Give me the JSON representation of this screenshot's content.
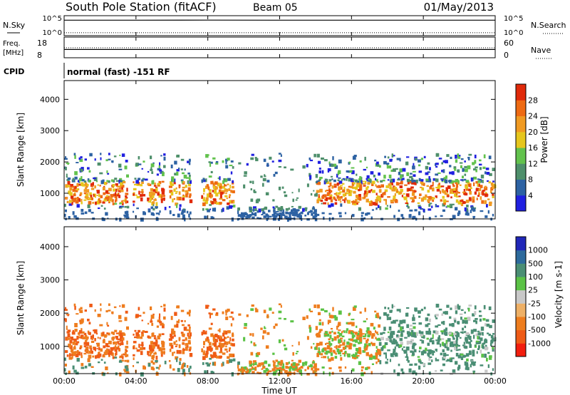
{
  "header": {
    "station": "South Pole Station (fitACF)",
    "beam": "Beam 05",
    "date": "01/May/2013"
  },
  "colors": {
    "power_scale": [
      "#2020e0",
      "#2d62a3",
      "#4e8f6b",
      "#62c24d",
      "#e6c61d",
      "#f09a22",
      "#ee6a13",
      "#e02a0a"
    ],
    "velocity_scale": [
      "#f21e0e",
      "#ef5b16",
      "#ee7d1e",
      "#eeb066",
      "#c8c8c8",
      "#5bc246",
      "#4a8e74",
      "#2d6a9c",
      "#2027b8"
    ]
  },
  "chart_data": [
    {
      "type": "line",
      "panel": "N.Sky / N.Search",
      "left_label": "N.Sky",
      "right_label": "N.Search",
      "left_ticks": [
        "10^5",
        "10^0"
      ],
      "right_ticks": [
        "10^5",
        "10^0"
      ],
      "series": [
        {
          "name": "N.Sky",
          "style": "solid",
          "x": [
            0,
            4,
            8,
            12,
            16,
            20,
            24
          ],
          "values": [
            30000,
            30000,
            32000,
            30000,
            30000,
            30000,
            30000
          ]
        },
        {
          "name": "N.Search",
          "style": "dotted",
          "x": [
            0,
            4,
            8,
            12,
            16,
            20,
            24
          ],
          "values": [
            3,
            3,
            3,
            3,
            3,
            3,
            3
          ]
        }
      ]
    },
    {
      "type": "line",
      "panel": "Freq. / Nave",
      "left_label": "Freq.",
      "left_unit": "[MHz]",
      "right_label": "Nave",
      "left_ticks": [
        18,
        8
      ],
      "right_ticks": [
        60,
        0
      ],
      "series": [
        {
          "name": "Freq.",
          "style": "solid",
          "x": [
            0,
            4,
            8,
            12,
            16,
            20,
            24
          ],
          "values": [
            12,
            12,
            12,
            12,
            12,
            12,
            12
          ]
        },
        {
          "name": "Nave",
          "style": "dotted",
          "x": [
            0,
            4,
            8,
            12,
            16,
            20,
            24
          ],
          "values": [
            30,
            30,
            30,
            30,
            30,
            30,
            30
          ]
        }
      ]
    },
    {
      "type": "text",
      "panel": "CPID",
      "label": "CPID",
      "value": "normal (fast) -151 RF"
    },
    {
      "type": "heatmap",
      "panel": "Power",
      "ylabel": "Slant Range [km]",
      "yticks": [
        1000,
        2000,
        3000,
        4000
      ],
      "colorbar_label": "Power [dB]",
      "colorbar_ticks": [
        4,
        8,
        12,
        16,
        20,
        24,
        28
      ],
      "color_levels": [
        0,
        4,
        8,
        12,
        16,
        20,
        24,
        28
      ]
    },
    {
      "type": "heatmap",
      "panel": "Velocity",
      "ylabel": "Slant Range [km]",
      "yticks": [
        1000,
        2000,
        3000,
        4000
      ],
      "colorbar_label": "Velocity [m s-1]",
      "colorbar_ticks": [
        1000,
        500,
        100,
        25,
        -25,
        -100,
        -500,
        -1000
      ]
    }
  ],
  "xaxis": {
    "title": "Time UT",
    "ticks": [
      "00:00",
      "04:00",
      "08:00",
      "12:00",
      "16:00",
      "20:00",
      "00:00"
    ]
  }
}
